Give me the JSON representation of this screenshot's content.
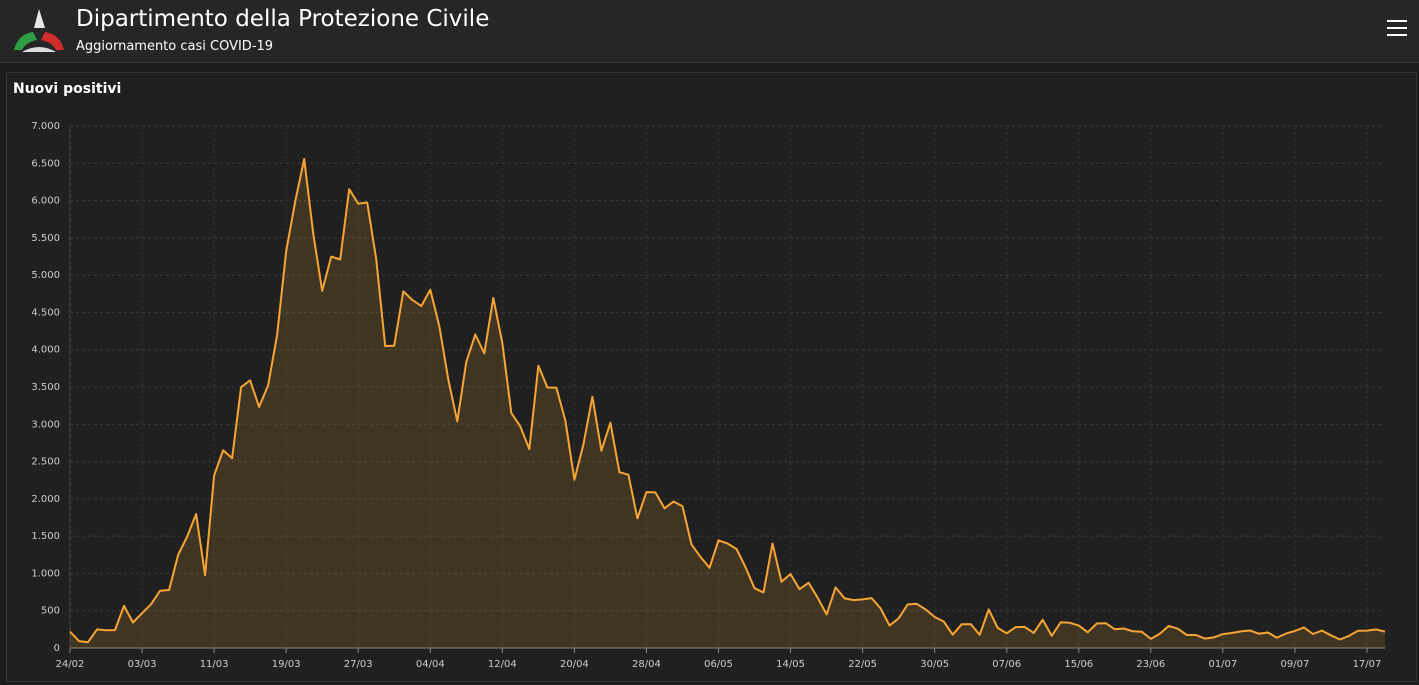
{
  "header": {
    "title": "Dipartimento della Protezione Civile",
    "subtitle": "Aggiornamento casi COVID-19"
  },
  "chart_data": {
    "type": "line",
    "title": "Nuovi positivi",
    "color": "#f7a535",
    "grid": true,
    "categories": [
      "24/02",
      null,
      null,
      null,
      null,
      null,
      null,
      null,
      "03/03",
      null,
      null,
      null,
      null,
      null,
      null,
      null,
      "11/03",
      null,
      null,
      null,
      null,
      null,
      null,
      null,
      "19/03",
      null,
      null,
      null,
      null,
      null,
      null,
      null,
      "27/03",
      null,
      null,
      null,
      null,
      null,
      null,
      null,
      "04/04",
      null,
      null,
      null,
      null,
      null,
      null,
      null,
      "12/04",
      null,
      null,
      null,
      null,
      null,
      null,
      null,
      "20/04",
      null,
      null,
      null,
      null,
      null,
      null,
      null,
      "28/04",
      null,
      null,
      null,
      null,
      null,
      null,
      null,
      "06/05",
      null,
      null,
      null,
      null,
      null,
      null,
      null,
      "14/05",
      null,
      null,
      null,
      null,
      null,
      null,
      null,
      "22/05",
      null,
      null,
      null,
      null,
      null,
      null,
      null,
      "30/05",
      null,
      null,
      null,
      null,
      null,
      null,
      null,
      "07/06",
      null,
      null,
      null,
      null,
      null,
      null,
      null,
      "15/06",
      null,
      null,
      null,
      null,
      null,
      null,
      null,
      "23/06",
      null,
      null,
      null,
      null,
      null,
      null,
      null,
      "01/07",
      null,
      null,
      null,
      null,
      null,
      null,
      null,
      "09/07",
      null,
      null,
      null,
      null,
      null,
      null,
      null,
      "17/07",
      null,
      null
    ],
    "values": [
      221,
      93,
      78,
      250,
      238,
      240,
      566,
      342,
      466,
      587,
      769,
      778,
      1247,
      1492,
      1797,
      977,
      2313,
      2651,
      2547,
      3497,
      3590,
      3233,
      3526,
      4207,
      5322,
      5986,
      6557,
      5560,
      4789,
      5249,
      5210,
      6153,
      5959,
      5974,
      5217,
      4050,
      4053,
      4782,
      4668,
      4585,
      4805,
      4316,
      3599,
      3039,
      3836,
      4204,
      3951,
      4694,
      4092,
      3153,
      2972,
      2667,
      3786,
      3493,
      3491,
      3047,
      2256,
      2729,
      3370,
      2646,
      3021,
      2357,
      2324,
      1739,
      2091,
      2086,
      1872,
      1965,
      1900,
      1389,
      1221,
      1075,
      1444,
      1401,
      1327,
      1083,
      802,
      744,
      1402,
      888,
      992,
      789,
      875,
      675,
      451,
      813,
      665,
      642,
      652,
      669,
      531,
      300,
      397,
      584,
      593,
      516,
      416,
      355,
      178,
      318,
      321,
      177,
      518,
      270,
      197,
      280,
      283,
      202,
      379,
      163,
      346,
      338,
      301,
      210,
      329,
      333,
      251,
      262,
      224,
      218,
      122,
      190,
      296,
      259,
      175,
      174,
      126,
      142,
      187,
      201,
      223,
      235,
      192,
      208,
      138,
      193,
      229,
      276,
      188,
      234,
      169,
      114,
      162,
      230,
      233,
      249,
      219
    ],
    "ylim": [
      0,
      7000
    ],
    "yticks": [
      0,
      500,
      {
        "value": 1000,
        "label": "1.000"
      },
      {
        "value": 1500,
        "label": "1.500"
      },
      {
        "value": 2000,
        "label": "2.000"
      },
      {
        "value": 2500,
        "label": "2.500"
      },
      {
        "value": 3000,
        "label": "3.000"
      },
      {
        "value": 3500,
        "label": "3.500"
      },
      {
        "value": 4000,
        "label": "4.000"
      },
      {
        "value": 4500,
        "label": "4.500"
      },
      {
        "value": 5000,
        "label": "5.000"
      },
      {
        "value": 5500,
        "label": "5.500"
      },
      {
        "value": 6000,
        "label": "6.000"
      },
      {
        "value": 6500,
        "label": "6.500"
      },
      {
        "value": 7000,
        "label": "7.000"
      }
    ]
  }
}
